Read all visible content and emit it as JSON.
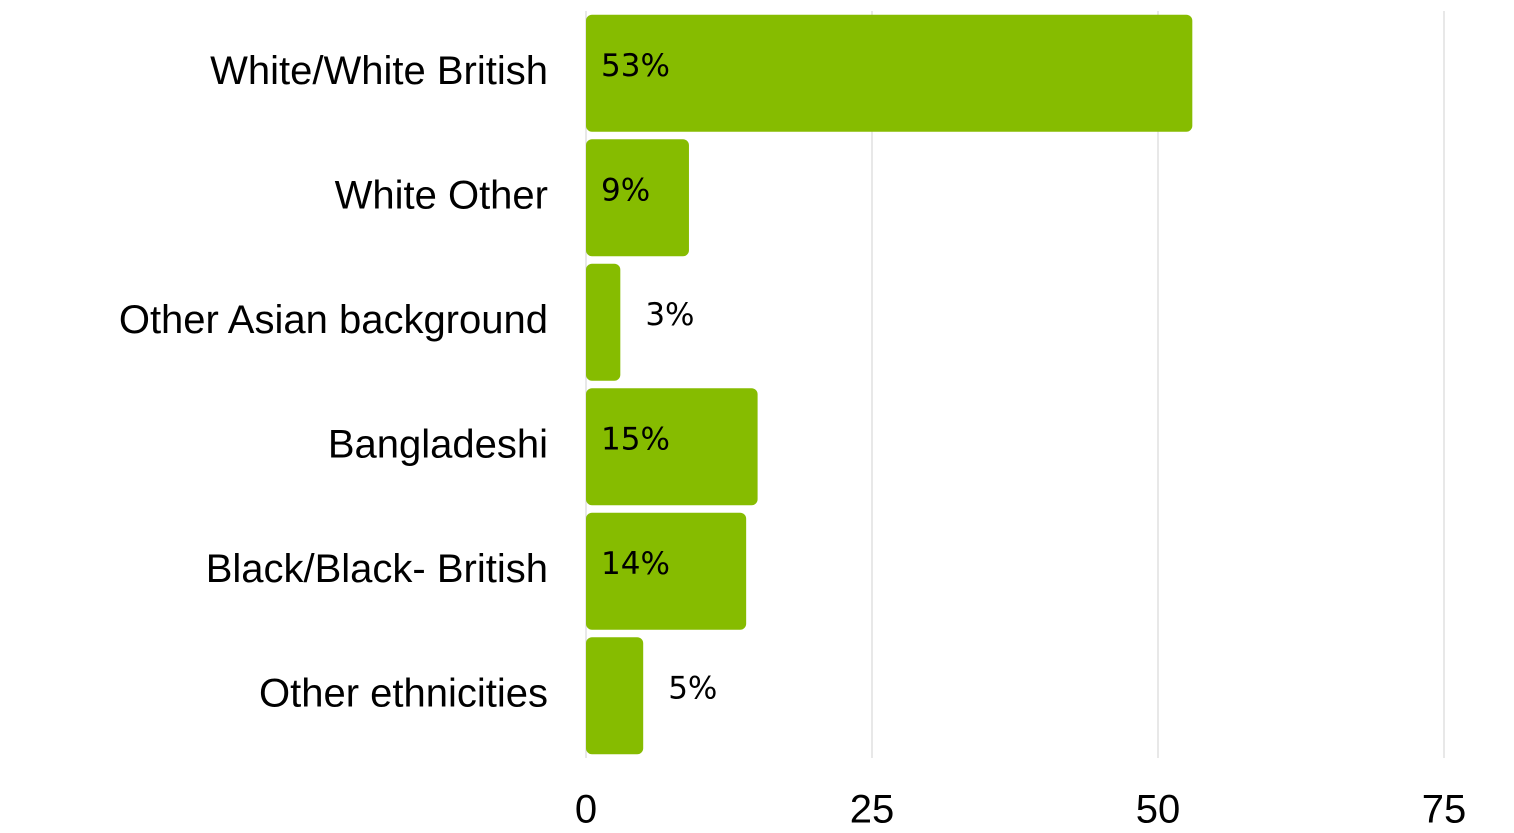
{
  "chart_data": {
    "type": "bar",
    "orientation": "horizontal",
    "categories": [
      "White/White British",
      "White Other",
      "Other Asian background",
      "Bangladeshi",
      "Black/Black- British",
      "Other ethnicities"
    ],
    "values": [
      53,
      9,
      3,
      15,
      14,
      5
    ],
    "value_labels": [
      "53%",
      "9%",
      "3%",
      "15%",
      "14%",
      "5%"
    ],
    "color": "#86bc00",
    "xlim": [
      0,
      75
    ],
    "xticks": [
      0,
      25,
      50,
      75
    ],
    "grid": true
  }
}
